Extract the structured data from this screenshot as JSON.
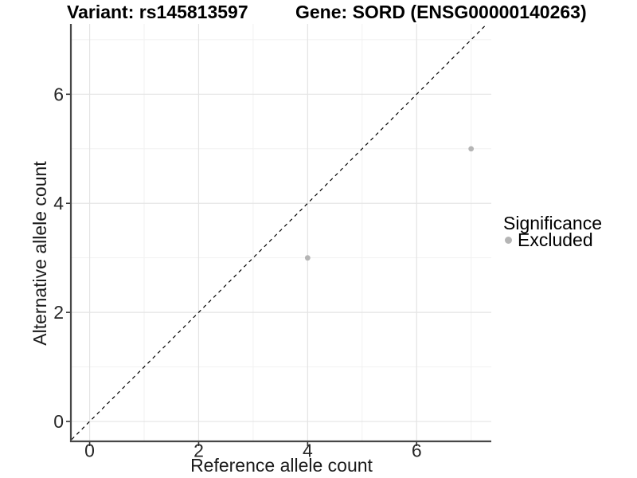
{
  "titles": {
    "variant": "Variant: rs145813597",
    "gene": "Gene: SORD (ENSG00000140263)"
  },
  "chart_data": {
    "type": "scatter",
    "title": "Variant: rs145813597    Gene: SORD (ENSG00000140263)",
    "xlabel": "Reference allele count",
    "ylabel": "Alternative allele count",
    "xlim": [
      -0.33,
      7.37
    ],
    "ylim": [
      -0.35,
      7.29
    ],
    "x_major_ticks": [
      0,
      2,
      4,
      6
    ],
    "y_major_ticks": [
      0,
      2,
      4,
      6
    ],
    "x_minor_gridlines": [
      1,
      3,
      5,
      7
    ],
    "y_minor_gridlines": [
      1,
      3,
      5,
      7
    ],
    "grid": true,
    "series": [
      {
        "name": "Excluded",
        "color": "#b5b5b5",
        "points": [
          {
            "x": 4,
            "y": 3
          },
          {
            "x": 7,
            "y": 5
          }
        ]
      }
    ],
    "reference_line": {
      "type": "identity-diagonal",
      "equation": "y = x",
      "style": "dashed",
      "color": "#000000"
    },
    "legend": {
      "title": "Significance",
      "position": "right",
      "entries": [
        {
          "label": "Excluded",
          "color": "#b5b5b5",
          "marker": "circle"
        }
      ]
    },
    "colors": {
      "point": "#b5b5b5",
      "axis_line": "#474747",
      "grid_major": "#e4e4e4",
      "grid_minor": "#f1f1f1",
      "tick": "#333333",
      "text": "#262626"
    }
  }
}
